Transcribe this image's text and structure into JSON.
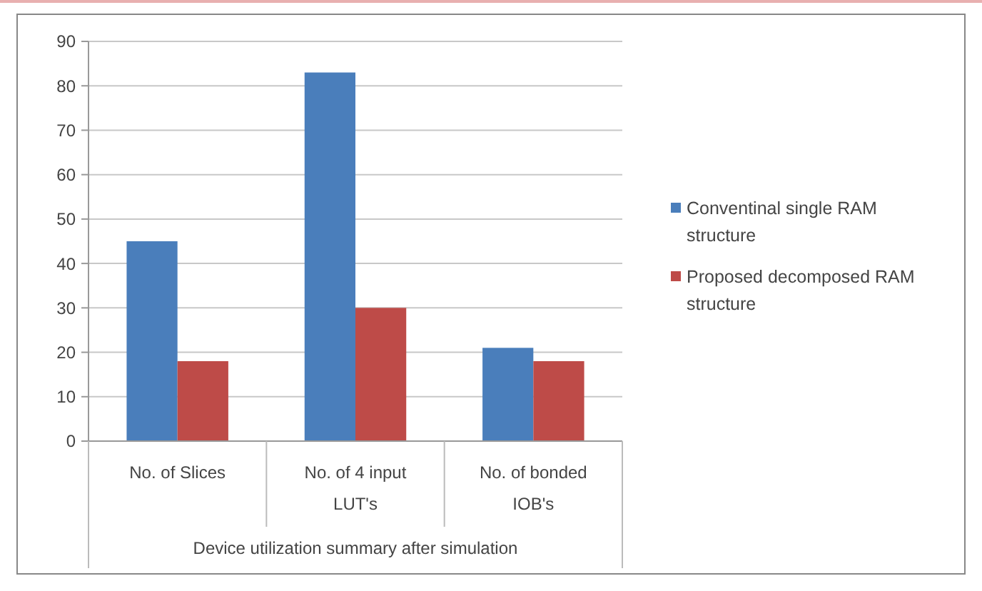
{
  "chart_data": {
    "type": "bar",
    "xlabel": "Device utilization summary after simulation",
    "categories": [
      "No. of Slices",
      "No. of 4 input LUT's",
      "No. of bonded IOB's"
    ],
    "series": [
      {
        "name": "Conventinal single RAM structure",
        "color": "#4a7ebb",
        "values": [
          45,
          83,
          21
        ]
      },
      {
        "name": "Proposed decomposed RAM structure",
        "color": "#be4b48",
        "values": [
          18,
          30,
          18
        ]
      }
    ],
    "ylim": [
      0,
      90
    ],
    "yticks": [
      0,
      10,
      20,
      30,
      40,
      50,
      60,
      70,
      80,
      90
    ],
    "grid": "y",
    "legend": "right"
  }
}
